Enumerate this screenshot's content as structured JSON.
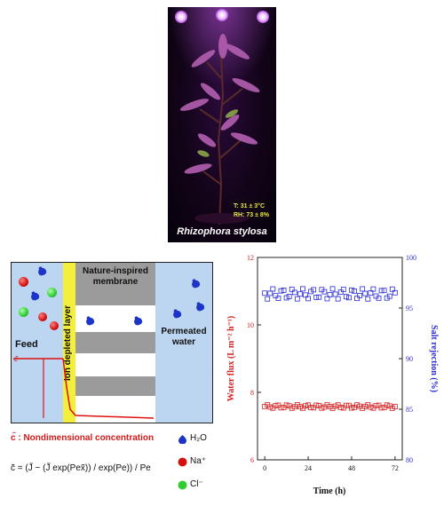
{
  "photo": {
    "species": "Rhizophora stylosa",
    "temperature": "T: 31 ± 3°C",
    "humidity": "RH: 73 ± 8%"
  },
  "schematic": {
    "feed_label": "Feed",
    "ion_layer_label": "Ion depleted layer",
    "membrane_label": "Nature-inspired membrane",
    "permeate_label": "Permeated water",
    "profile_axis_label": "c̃"
  },
  "legend": {
    "concentration_note": "c̃ : Nondimensional concentration",
    "equation": "c̃ = (J̃ − (J̃ exp(Pex̃)) / exp(Pe)) / Pe",
    "items": [
      {
        "label": "H₂O",
        "icon": "water-molecule-icon",
        "color": "#1d35c6"
      },
      {
        "label": "Na⁺",
        "icon": "sodium-ion-icon",
        "color": "#d41010"
      },
      {
        "label": "Cl⁻",
        "icon": "chloride-ion-icon",
        "color": "#2ecc2e"
      }
    ]
  },
  "chart_data": {
    "type": "scatter",
    "xlabel": "Time (h)",
    "ylabel_left": "Water flux (L m⁻² h⁻¹)",
    "ylabel_right": "Salt rejection (%)",
    "xlim": [
      -4,
      76
    ],
    "x_ticks": [
      0,
      24,
      48,
      72
    ],
    "ylim_left": [
      6,
      12
    ],
    "y_ticks_left": [
      6,
      8,
      10,
      12
    ],
    "ylim_right": [
      80,
      100
    ],
    "y_ticks_right": [
      80,
      85,
      90,
      95,
      100
    ],
    "grid": false,
    "series": [
      {
        "axis": "left",
        "color": "#d42020",
        "marker": "square-open",
        "x_start": 0,
        "x_end": 72,
        "x_step": 1.5,
        "mean": 7.58,
        "spread": 0.05
      },
      {
        "axis": "right",
        "color": "#2a2ad4",
        "marker": "square-open",
        "x_start": 0,
        "x_end": 72,
        "x_step": 1.5,
        "mean": 96.4,
        "spread": 0.5
      }
    ]
  }
}
